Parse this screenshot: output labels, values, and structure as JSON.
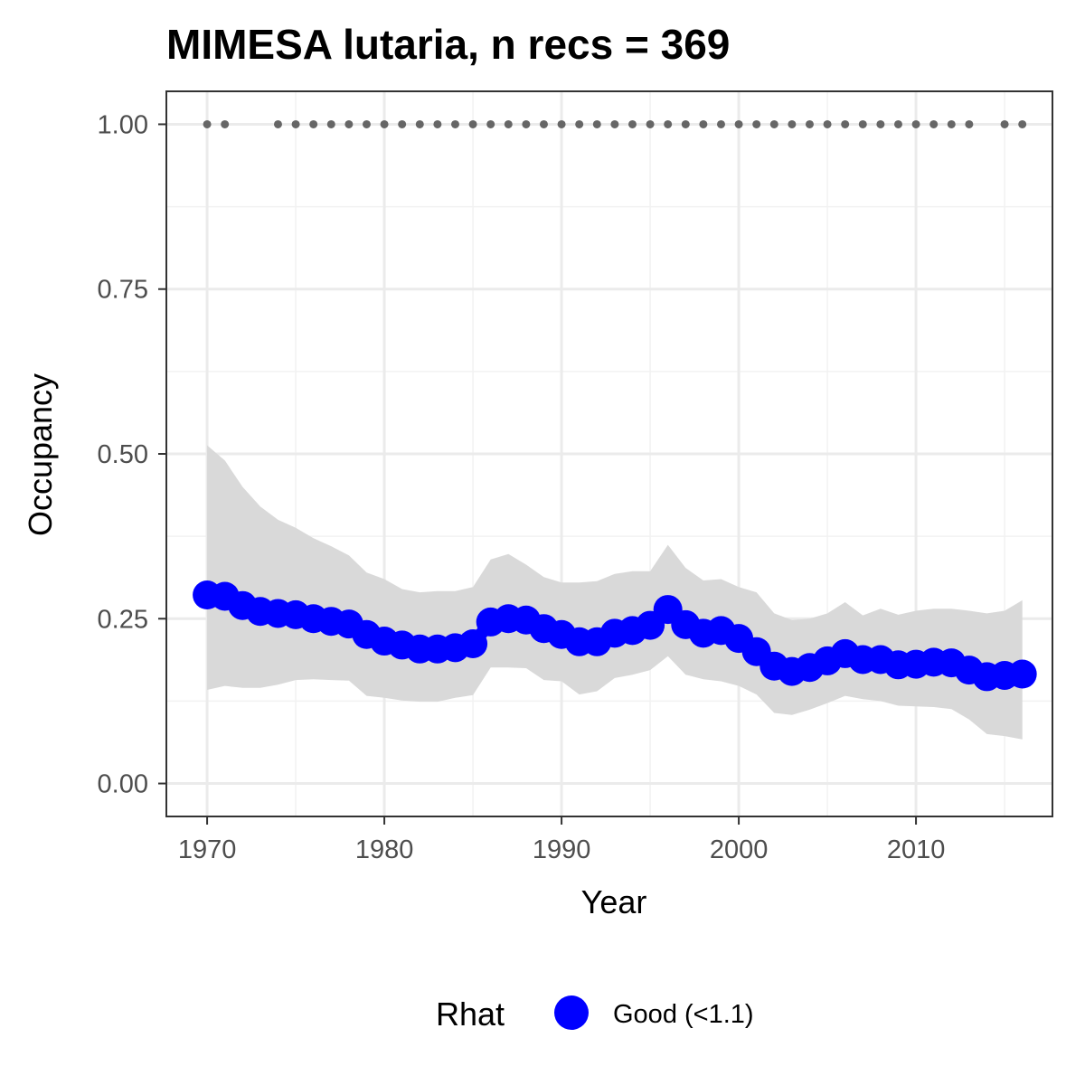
{
  "chart_data": {
    "type": "line",
    "title": "MIMESA lutaria, n recs = 369",
    "xlabel": "Year",
    "ylabel": "Occupancy",
    "xlim": [
      1967.7,
      2017.7
    ],
    "ylim": [
      -0.05,
      1.05
    ],
    "x_ticks": [
      1970,
      1980,
      1990,
      2000,
      2010
    ],
    "x_tick_labels": [
      "1970",
      "1980",
      "1990",
      "2000",
      "2010"
    ],
    "y_ticks": [
      0.0,
      0.25,
      0.5,
      0.75,
      1.0
    ],
    "y_tick_labels": [
      "0.00",
      "0.25",
      "0.50",
      "0.75",
      "1.00"
    ],
    "grid": true,
    "x": [
      1970,
      1971,
      1972,
      1973,
      1974,
      1975,
      1976,
      1977,
      1978,
      1979,
      1980,
      1981,
      1982,
      1983,
      1984,
      1985,
      1986,
      1987,
      1988,
      1989,
      1990,
      1991,
      1992,
      1993,
      1994,
      1995,
      1996,
      1997,
      1998,
      1999,
      2000,
      2001,
      2002,
      2003,
      2004,
      2005,
      2006,
      2007,
      2008,
      2009,
      2010,
      2011,
      2012,
      2013,
      2014,
      2015,
      2016
    ],
    "series": [
      {
        "name": "Good (<1.1)",
        "color": "#0000ff",
        "values": [
          0.286,
          0.284,
          0.27,
          0.261,
          0.258,
          0.256,
          0.25,
          0.246,
          0.242,
          0.226,
          0.216,
          0.21,
          0.204,
          0.204,
          0.206,
          0.212,
          0.245,
          0.25,
          0.248,
          0.235,
          0.226,
          0.215,
          0.215,
          0.228,
          0.232,
          0.24,
          0.264,
          0.241,
          0.228,
          0.232,
          0.22,
          0.2,
          0.178,
          0.17,
          0.176,
          0.186,
          0.197,
          0.188,
          0.188,
          0.18,
          0.181,
          0.184,
          0.183,
          0.172,
          0.162,
          0.164,
          0.166
        ]
      }
    ],
    "credible_interval": {
      "color": "#d9d9d9",
      "upper": [
        0.513,
        0.49,
        0.45,
        0.42,
        0.4,
        0.388,
        0.372,
        0.36,
        0.346,
        0.32,
        0.31,
        0.295,
        0.29,
        0.292,
        0.292,
        0.298,
        0.34,
        0.348,
        0.332,
        0.313,
        0.305,
        0.305,
        0.307,
        0.318,
        0.322,
        0.322,
        0.362,
        0.327,
        0.308,
        0.31,
        0.298,
        0.29,
        0.258,
        0.248,
        0.25,
        0.258,
        0.275,
        0.255,
        0.265,
        0.256,
        0.262,
        0.265,
        0.265,
        0.262,
        0.258,
        0.262,
        0.278
      ],
      "lower": [
        0.142,
        0.148,
        0.145,
        0.145,
        0.15,
        0.157,
        0.158,
        0.157,
        0.156,
        0.133,
        0.13,
        0.126,
        0.124,
        0.124,
        0.13,
        0.134,
        0.176,
        0.176,
        0.175,
        0.157,
        0.155,
        0.135,
        0.14,
        0.16,
        0.165,
        0.172,
        0.193,
        0.165,
        0.158,
        0.155,
        0.148,
        0.135,
        0.107,
        0.104,
        0.112,
        0.122,
        0.133,
        0.128,
        0.125,
        0.118,
        0.117,
        0.116,
        0.113,
        0.097,
        0.075,
        0.072,
        0.067
      ]
    },
    "detection_years": [
      1970,
      1971,
      1974,
      1975,
      1976,
      1977,
      1978,
      1979,
      1980,
      1981,
      1982,
      1983,
      1984,
      1985,
      1986,
      1987,
      1988,
      1989,
      1990,
      1991,
      1992,
      1993,
      1994,
      1995,
      1996,
      1997,
      1998,
      1999,
      2000,
      2001,
      2002,
      2003,
      2004,
      2005,
      2006,
      2007,
      2008,
      2009,
      2010,
      2011,
      2012,
      2013,
      2015,
      2016
    ],
    "detection_value": 1.0,
    "detection_color": "#666666",
    "legend": {
      "title": "Rhat",
      "entries": [
        "Good (<1.1)"
      ],
      "colors": [
        "#0000ff"
      ],
      "position": "bottom"
    }
  }
}
